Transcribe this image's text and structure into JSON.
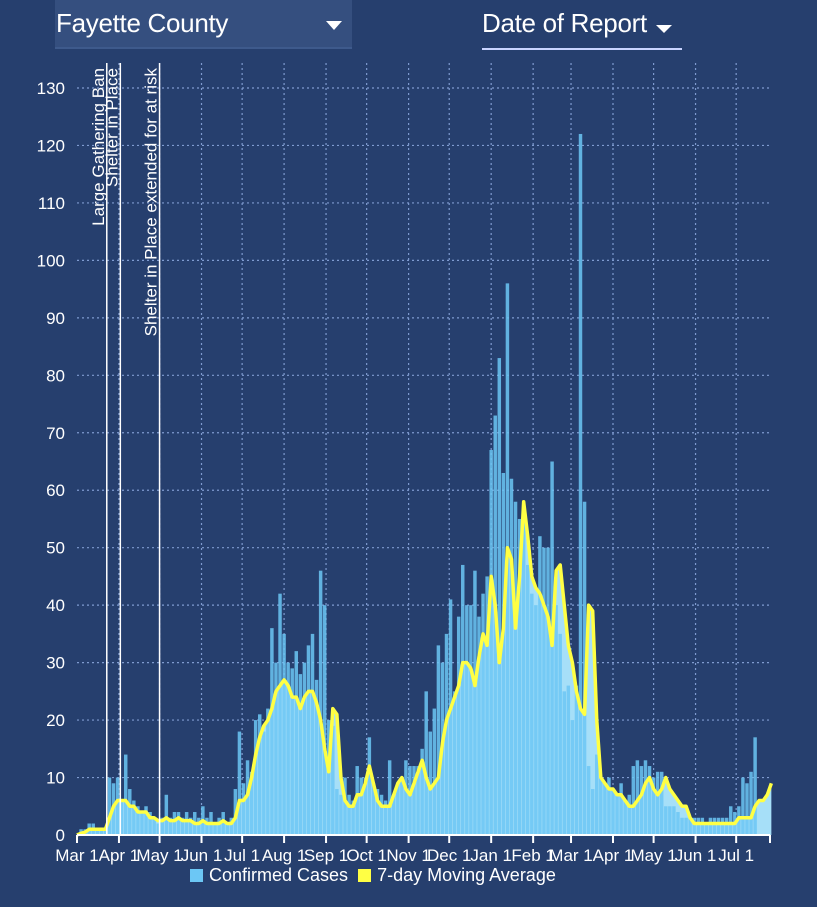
{
  "controls": {
    "county": "Fayette County",
    "date_mode": "Date of Report"
  },
  "chart_data": {
    "type": "bar",
    "title": "",
    "xlabel": "",
    "ylabel": "",
    "ylim": [
      0,
      130
    ],
    "yticks": [
      0,
      10,
      20,
      30,
      40,
      50,
      60,
      70,
      80,
      90,
      100,
      110,
      120,
      130
    ],
    "grid": true,
    "legend_position": "bottom",
    "x_start_date": "Mar 1",
    "x_unit": "days since Mar 1 (first year)",
    "xlim": [
      0,
      512
    ],
    "xticks": [
      {
        "day": 0,
        "label": "Mar 1"
      },
      {
        "day": 31,
        "label": "Apr 1"
      },
      {
        "day": 61,
        "label": "May 1"
      },
      {
        "day": 92,
        "label": "Jun 1"
      },
      {
        "day": 122,
        "label": "Jul 1"
      },
      {
        "day": 153,
        "label": "Aug 1"
      },
      {
        "day": 184,
        "label": "Sep 1"
      },
      {
        "day": 214,
        "label": "Oct 1"
      },
      {
        "day": 245,
        "label": "Nov 1"
      },
      {
        "day": 275,
        "label": "Dec 1"
      },
      {
        "day": 306,
        "label": "Jan 1"
      },
      {
        "day": 337,
        "label": "Feb 1"
      },
      {
        "day": 365,
        "label": "Mar 1"
      },
      {
        "day": 396,
        "label": "Apr 1"
      },
      {
        "day": 426,
        "label": "May 1"
      },
      {
        "day": 457,
        "label": "Jun 1"
      },
      {
        "day": 487,
        "label": "Jul 1"
      }
    ],
    "annotations": [
      {
        "day": 22,
        "label": "Large Gathering Ban"
      },
      {
        "day": 32,
        "label": "Shelter in Place"
      },
      {
        "day": 61,
        "label": "Shelter in Place extended for at risk"
      }
    ],
    "legend": [
      {
        "name": "Confirmed Cases",
        "color": "#6cc7f5"
      },
      {
        "name": "7-day Moving Average",
        "color": "#ffff44"
      }
    ],
    "x_step_days": 3,
    "series": [
      {
        "name": "Confirmed Cases",
        "color": "#6cc7f5",
        "values": [
          0,
          1,
          1,
          2,
          2,
          1,
          1,
          1,
          10,
          9,
          10,
          6,
          14,
          8,
          6,
          5,
          4,
          5,
          4,
          3,
          2,
          3,
          7,
          3,
          4,
          4,
          3,
          4,
          3,
          4,
          3,
          5,
          3,
          4,
          2,
          3,
          4,
          2,
          3,
          8,
          18,
          9,
          13,
          11,
          20,
          21,
          18,
          22,
          36,
          30,
          42,
          35,
          30,
          29,
          32,
          28,
          30,
          33,
          35,
          27,
          46,
          40,
          20,
          19,
          8,
          7,
          10,
          7,
          6,
          12,
          10,
          10,
          17,
          9,
          8,
          7,
          6,
          13,
          7,
          9,
          10,
          13,
          12,
          12,
          12,
          15,
          25,
          18,
          22,
          33,
          30,
          35,
          41,
          25,
          38,
          47,
          40,
          40,
          46,
          38,
          42,
          45,
          67,
          73,
          83,
          63,
          96,
          62,
          58,
          55,
          55,
          47,
          42,
          40,
          52,
          50,
          50,
          65,
          40,
          35,
          25,
          26,
          20,
          26,
          122,
          58,
          12,
          8,
          14,
          10,
          9,
          10,
          8,
          7,
          9,
          6,
          7,
          12,
          13,
          12,
          13,
          12,
          10,
          11,
          11,
          5,
          5,
          5,
          4,
          3,
          3,
          3,
          3,
          3,
          3,
          2,
          3,
          3,
          3,
          3,
          3,
          5,
          4,
          5,
          10,
          9,
          11,
          17
        ]
      },
      {
        "name": "7-day Moving Average",
        "color": "#ffff44",
        "values": [
          0,
          0.3,
          0.5,
          1,
          1,
          1,
          1,
          1,
          3,
          5,
          6,
          6,
          6,
          5,
          5,
          4,
          4,
          4,
          3,
          3,
          2.5,
          2.5,
          3,
          2.5,
          2.5,
          3,
          2.5,
          2.5,
          2.5,
          2,
          2,
          2.5,
          2,
          2,
          2,
          2,
          2.5,
          2,
          2,
          3,
          6,
          6,
          7,
          10,
          14,
          17,
          19,
          20,
          22,
          25,
          26,
          27,
          26,
          24,
          24,
          22,
          24,
          25,
          25,
          23,
          20,
          15,
          11,
          22,
          21,
          10,
          6,
          5,
          5,
          7,
          7,
          9,
          12,
          9,
          6,
          5,
          5,
          5,
          7,
          9,
          10,
          8,
          7,
          9,
          11,
          13,
          10,
          8,
          9,
          10,
          16,
          20,
          22,
          24,
          26,
          30,
          30,
          29,
          26,
          31,
          35,
          33,
          45,
          40,
          30,
          36,
          50,
          48,
          36,
          45,
          58,
          52,
          45,
          43,
          42,
          40,
          38,
          33,
          46,
          47,
          40,
          33,
          30,
          25,
          22,
          21,
          40,
          39,
          20,
          10,
          9,
          8,
          8,
          7,
          7,
          6,
          5,
          5,
          6,
          7,
          9,
          10,
          8,
          7,
          8,
          10,
          8,
          7,
          6,
          5,
          5,
          3,
          2,
          2,
          2,
          2,
          2,
          2,
          2,
          2,
          2,
          2,
          2,
          3,
          3,
          3,
          3,
          5,
          6,
          6,
          7,
          9
        ]
      }
    ]
  }
}
